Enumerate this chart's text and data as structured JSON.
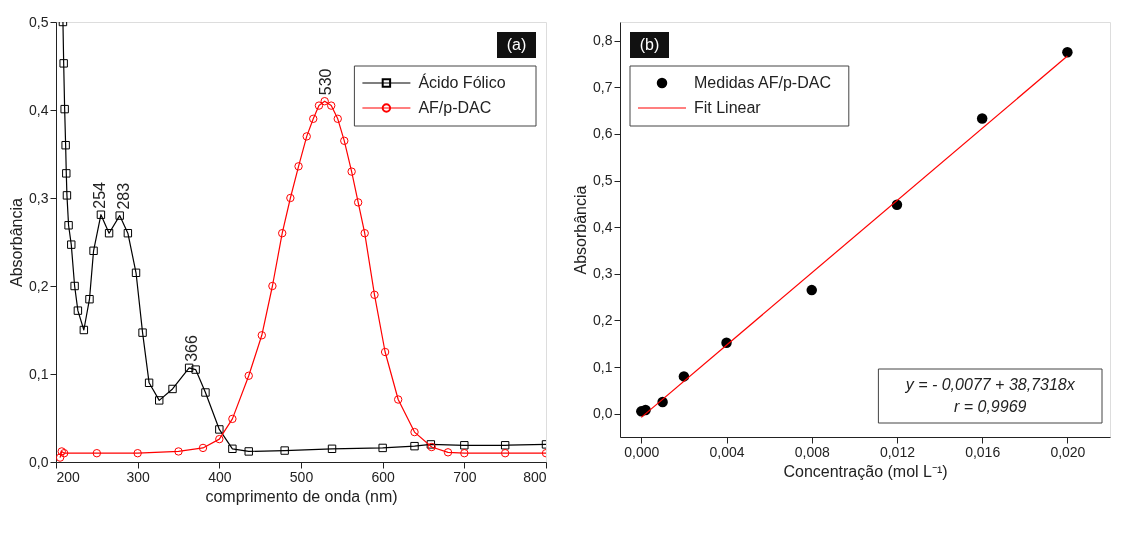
{
  "chart_data": [
    {
      "type": "line",
      "xlabel": "comprimento de onda (nm)",
      "ylabel": "Absorbância",
      "xlim": [
        200,
        800
      ],
      "ylim": [
        0,
        0.5
      ],
      "xticks": [
        200,
        300,
        400,
        500,
        600,
        700,
        800
      ],
      "yticks": [
        {
          "value": 0,
          "label": "0,0"
        },
        {
          "value": 0.1,
          "label": "0,1"
        },
        {
          "value": 0.2,
          "label": "0,2"
        },
        {
          "value": 0.3,
          "label": "0,3"
        },
        {
          "value": 0.4,
          "label": "0,4"
        },
        {
          "value": 0.5,
          "label": "0,5"
        }
      ],
      "grid": false,
      "legend": "top right",
      "line_style": "solid",
      "series": [
        {
          "name": "Ácido Fólico",
          "color": "#000000",
          "marker": "square",
          "x": [
            208.5,
            209.4,
            210.6,
            211.8,
            212.6,
            213.4,
            215.4,
            218.7,
            222.8,
            226.8,
            234.1,
            241,
            246,
            255,
            265,
            278,
            288,
            298,
            306,
            314,
            326.4,
            342.7,
            363,
            371,
            383,
            400,
            416,
            436,
            480,
            538,
            600,
            639,
            659,
            700,
            750,
            800
          ],
          "values": [
            0.5,
            0.453,
            0.401,
            0.36,
            0.328,
            0.303,
            0.269,
            0.247,
            0.2,
            0.172,
            0.15,
            0.185,
            0.24,
            0.281,
            0.26,
            0.28,
            0.26,
            0.215,
            0.147,
            0.09,
            0.07,
            0.083,
            0.107,
            0.105,
            0.079,
            0.037,
            0.015,
            0.012,
            0.013,
            0.015,
            0.016,
            0.018,
            0.02,
            0.019,
            0.019,
            0.02
          ]
        },
        {
          "name": "AF/p-DAC",
          "color": "#ff0000",
          "marker": "circle",
          "x": [
            205,
            207,
            210,
            250,
            300,
            350,
            380,
            400,
            416,
            436,
            452,
            465,
            477,
            487,
            497,
            507,
            515,
            522,
            529,
            537,
            545,
            553,
            562,
            570,
            578,
            590,
            603,
            619,
            639,
            660,
            680,
            700,
            750,
            800
          ],
          "values": [
            0.005,
            0.012,
            0.01,
            0.01,
            0.01,
            0.012,
            0.016,
            0.026,
            0.049,
            0.098,
            0.144,
            0.2,
            0.26,
            0.3,
            0.336,
            0.37,
            0.39,
            0.405,
            0.41,
            0.405,
            0.39,
            0.365,
            0.33,
            0.295,
            0.26,
            0.19,
            0.125,
            0.071,
            0.034,
            0.017,
            0.011,
            0.01,
            0.01,
            0.01
          ]
        }
      ],
      "annotations": [
        "(a)",
        {
          "text": "254",
          "x": 254,
          "y": 0.281
        },
        {
          "text": "283",
          "x": 283,
          "y": 0.28
        },
        {
          "text": "366",
          "x": 366,
          "y": 0.107
        },
        {
          "text": "530",
          "x": 530,
          "y": 0.41
        }
      ]
    },
    {
      "type": "scatter",
      "xlabel": "Concentração (mol L⁻¹)",
      "ylabel": "Absorbância",
      "xlim": [
        -0.001,
        0.022
      ],
      "ylim": [
        -0.05,
        0.84
      ],
      "xticks": [
        {
          "value": 0,
          "label": "0,000"
        },
        {
          "value": 0.004,
          "label": "0,004"
        },
        {
          "value": 0.008,
          "label": "0,008"
        },
        {
          "value": 0.012,
          "label": "0,012"
        },
        {
          "value": 0.016,
          "label": "0,016"
        },
        {
          "value": 0.02,
          "label": "0,020"
        }
      ],
      "yticks": [
        {
          "value": 0,
          "label": "0,0"
        },
        {
          "value": 0.1,
          "label": "0,1"
        },
        {
          "value": 0.2,
          "label": "0,2"
        },
        {
          "value": 0.3,
          "label": "0,3"
        },
        {
          "value": 0.4,
          "label": "0,4"
        },
        {
          "value": 0.5,
          "label": "0,5"
        },
        {
          "value": 0.6,
          "label": "0,6"
        },
        {
          "value": 0.7,
          "label": "0,7"
        },
        {
          "value": 0.8,
          "label": "0,8"
        }
      ],
      "grid": false,
      "legend": "top left",
      "series": [
        {
          "name": "Medidas AF/p-DAC",
          "color": "#000000",
          "marker": "circle",
          "x": [
            0,
            0.0002,
            0.001,
            0.002,
            0.004,
            0.008,
            0.012,
            0.016,
            0.02
          ],
          "values": [
            0.005,
            0.008,
            0.025,
            0.08,
            0.152,
            0.265,
            0.448,
            0.633,
            0.775
          ]
        },
        {
          "name": "Fit Linear",
          "type": "line",
          "color": "#ff0000",
          "marker": "none",
          "line_style": "solid",
          "x": [
            0,
            0.02
          ],
          "values": [
            -0.008,
            0.767
          ]
        }
      ],
      "annotations": [
        "(b)",
        "y = - 0,0077 + 38,7318x",
        "r = 0,9969"
      ]
    }
  ]
}
